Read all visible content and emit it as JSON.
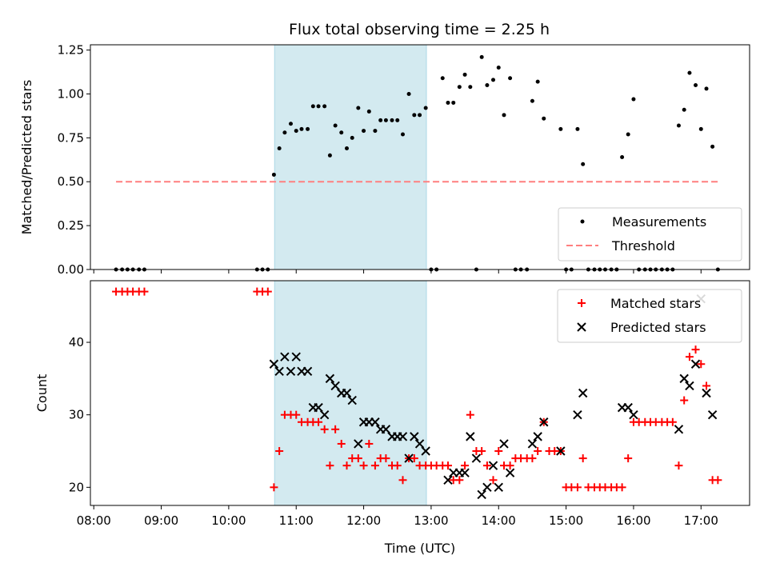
{
  "title": "Flux total observing time = 2.25 h",
  "chart_data": [
    {
      "type": "scatter",
      "panel": "top",
      "ylabel": "Matched/Predicted stars",
      "ylim": [
        0,
        1.28
      ],
      "yticks": [
        "0.00",
        "0.25",
        "0.50",
        "0.75",
        "1.00",
        "1.25"
      ],
      "ytick_values": [
        0,
        0.25,
        0.5,
        0.75,
        1.0,
        1.25
      ],
      "xlim": [
        7.95,
        17.72
      ],
      "highlight_span": {
        "start": 10.68,
        "end": 12.93,
        "color": "#d3eaf0"
      },
      "legend_position": "lower-right",
      "series": [
        {
          "name": "Measurements",
          "color": "#000000",
          "x": [
            8.33,
            8.42,
            8.5,
            8.58,
            8.67,
            8.75,
            10.42,
            10.5,
            10.58,
            10.67,
            10.75,
            10.83,
            10.92,
            11.0,
            11.08,
            11.17,
            11.25,
            11.33,
            11.42,
            11.5,
            11.58,
            11.67,
            11.75,
            11.83,
            11.92,
            12.0,
            12.08,
            12.17,
            12.25,
            12.33,
            12.42,
            12.5,
            12.58,
            12.67,
            12.75,
            12.83,
            12.92,
            13.0,
            13.08,
            13.17,
            13.25,
            13.33,
            13.42,
            13.5,
            13.58,
            13.67,
            13.75,
            13.83,
            13.92,
            14.0,
            14.08,
            14.17,
            14.25,
            14.33,
            14.42,
            14.5,
            14.58,
            14.67,
            14.92,
            15.0,
            15.08,
            15.17,
            15.25,
            15.33,
            15.42,
            15.5,
            15.58,
            15.67,
            15.75,
            15.83,
            15.92,
            16.0,
            16.08,
            16.17,
            16.25,
            16.33,
            16.42,
            16.5,
            16.58,
            16.67,
            16.75,
            16.83,
            16.92,
            17.0,
            17.08,
            17.17,
            17.25
          ],
          "y": [
            0,
            0,
            0,
            0,
            0,
            0,
            0,
            0,
            0,
            0.54,
            0.69,
            0.78,
            0.83,
            0.79,
            0.8,
            0.8,
            0.93,
            0.93,
            0.93,
            0.65,
            0.82,
            0.78,
            0.69,
            0.75,
            0.92,
            0.79,
            0.9,
            0.79,
            0.85,
            0.85,
            0.85,
            0.85,
            0.77,
            1.0,
            0.88,
            0.88,
            0.92,
            0,
            0,
            1.09,
            0.95,
            0.95,
            1.04,
            1.11,
            1.04,
            0,
            1.21,
            1.05,
            1.08,
            1.15,
            0.88,
            1.09,
            0,
            0,
            0,
            0.96,
            1.07,
            0.86,
            0.8,
            0,
            0,
            0.8,
            0.6,
            0,
            0,
            0,
            0,
            0,
            0,
            0.64,
            0.77,
            0.97,
            0,
            0,
            0,
            0,
            0,
            0,
            0,
            0.82,
            0.91,
            1.12,
            1.05,
            0.8,
            1.03,
            0.7,
            0
          ]
        },
        {
          "name": "Threshold",
          "color": "#ff7f7f",
          "x": [
            8.33,
            17.25
          ],
          "y": [
            0.5,
            0.5
          ]
        }
      ]
    },
    {
      "type": "scatter",
      "panel": "bottom",
      "ylabel": "Count",
      "xlabel": "Time (UTC)",
      "ylim": [
        17.5,
        48.5
      ],
      "yticks": [
        "20",
        "30",
        "40"
      ],
      "ytick_values": [
        20,
        30,
        40
      ],
      "xlim": [
        7.95,
        17.72
      ],
      "xticks": [
        "08:00",
        "09:00",
        "10:00",
        "11:00",
        "12:00",
        "13:00",
        "14:00",
        "15:00",
        "16:00",
        "17:00"
      ],
      "xtick_values": [
        8,
        9,
        10,
        11,
        12,
        13,
        14,
        15,
        16,
        17
      ],
      "highlight_span": {
        "start": 10.68,
        "end": 12.93,
        "color": "#d3eaf0"
      },
      "legend_position": "top-right",
      "series": [
        {
          "name": "Matched stars",
          "color": "#ff0000",
          "x": [
            8.33,
            8.42,
            8.5,
            8.58,
            8.67,
            8.75,
            10.42,
            10.5,
            10.58,
            10.67,
            10.75,
            10.83,
            10.92,
            11.0,
            11.08,
            11.17,
            11.25,
            11.33,
            11.42,
            11.5,
            11.58,
            11.67,
            11.75,
            11.83,
            11.92,
            12.0,
            12.08,
            12.17,
            12.25,
            12.33,
            12.42,
            12.5,
            12.58,
            12.67,
            12.75,
            12.83,
            12.92,
            13.0,
            13.08,
            13.17,
            13.25,
            13.33,
            13.42,
            13.5,
            13.58,
            13.67,
            13.75,
            13.83,
            13.92,
            14.0,
            14.08,
            14.17,
            14.25,
            14.33,
            14.42,
            14.5,
            14.58,
            14.67,
            14.75,
            14.83,
            14.92,
            15.0,
            15.08,
            15.17,
            15.25,
            15.33,
            15.42,
            15.5,
            15.58,
            15.67,
            15.75,
            15.83,
            15.92,
            16.0,
            16.08,
            16.17,
            16.25,
            16.33,
            16.42,
            16.5,
            16.58,
            16.67,
            16.75,
            16.83,
            16.92,
            17.0,
            17.08,
            17.17,
            17.25
          ],
          "y": [
            47,
            47,
            47,
            47,
            47,
            47,
            47,
            47,
            47,
            20,
            25,
            30,
            30,
            30,
            29,
            29,
            29,
            29,
            28,
            23,
            28,
            26,
            23,
            24,
            24,
            23,
            26,
            23,
            24,
            24,
            23,
            23,
            21,
            24,
            24,
            23,
            23,
            23,
            23,
            23,
            23,
            21,
            21,
            23,
            30,
            25,
            25,
            23,
            21,
            25,
            23,
            23,
            24,
            24,
            24,
            24,
            25,
            29,
            25,
            25,
            25,
            20,
            20,
            20,
            24,
            20,
            20,
            20,
            20,
            20,
            20,
            20,
            24,
            29,
            29,
            29,
            29,
            29,
            29,
            29,
            29,
            23,
            32,
            38,
            39,
            37,
            34,
            21,
            21
          ]
        },
        {
          "name": "Predicted stars",
          "color": "#000000",
          "x": [
            10.67,
            10.75,
            10.83,
            10.92,
            11.0,
            11.08,
            11.17,
            11.25,
            11.33,
            11.42,
            11.5,
            11.58,
            11.67,
            11.75,
            11.83,
            11.92,
            12.0,
            12.08,
            12.17,
            12.25,
            12.33,
            12.42,
            12.5,
            12.58,
            12.67,
            12.75,
            12.83,
            12.92,
            13.25,
            13.33,
            13.42,
            13.5,
            13.58,
            13.67,
            13.75,
            13.83,
            13.92,
            14.0,
            14.08,
            14.17,
            14.5,
            14.58,
            14.67,
            14.92,
            15.17,
            15.25,
            15.83,
            15.92,
            16.0,
            16.67,
            16.75,
            16.83,
            16.92,
            17.0,
            17.08,
            17.17
          ],
          "y": [
            37,
            36,
            38,
            36,
            38,
            36,
            36,
            31,
            31,
            30,
            35,
            34,
            33,
            33,
            32,
            26,
            29,
            29,
            29,
            28,
            28,
            27,
            27,
            27,
            24,
            27,
            26,
            25,
            21,
            22,
            22,
            22,
            27,
            24,
            19,
            20,
            23,
            20,
            26,
            22,
            26,
            27,
            29,
            25,
            30,
            33,
            31,
            31,
            30,
            28,
            35,
            34,
            37,
            46,
            33,
            30
          ]
        }
      ]
    }
  ]
}
